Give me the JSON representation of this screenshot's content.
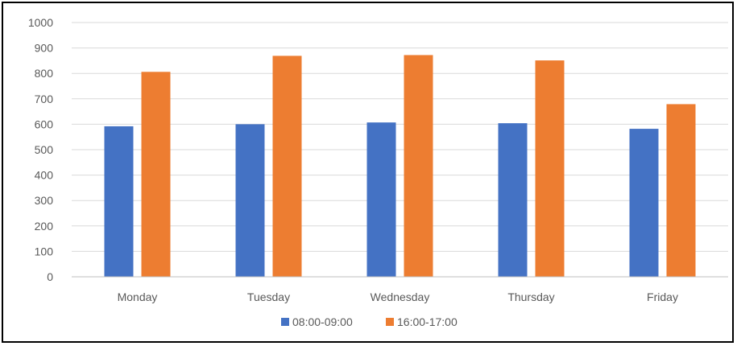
{
  "chart_data": {
    "type": "bar",
    "categories": [
      "Monday",
      "Tuesday",
      "Wednesday",
      "Thursday",
      "Friday"
    ],
    "series": [
      {
        "name": "08:00-09:00",
        "color": "#4472C4",
        "values": [
          592,
          600,
          607,
          604,
          582
        ]
      },
      {
        "name": "16:00-17:00",
        "color": "#ED7D31",
        "values": [
          806,
          869,
          872,
          851,
          679
        ]
      }
    ],
    "ylim": [
      0,
      1000
    ],
    "yticks": [
      0,
      100,
      200,
      300,
      400,
      500,
      600,
      700,
      800,
      900,
      1000
    ],
    "grid": true,
    "legend_position": "bottom",
    "gridline_color": "#D9D9D9",
    "axis_color": "#BFBFBF"
  }
}
